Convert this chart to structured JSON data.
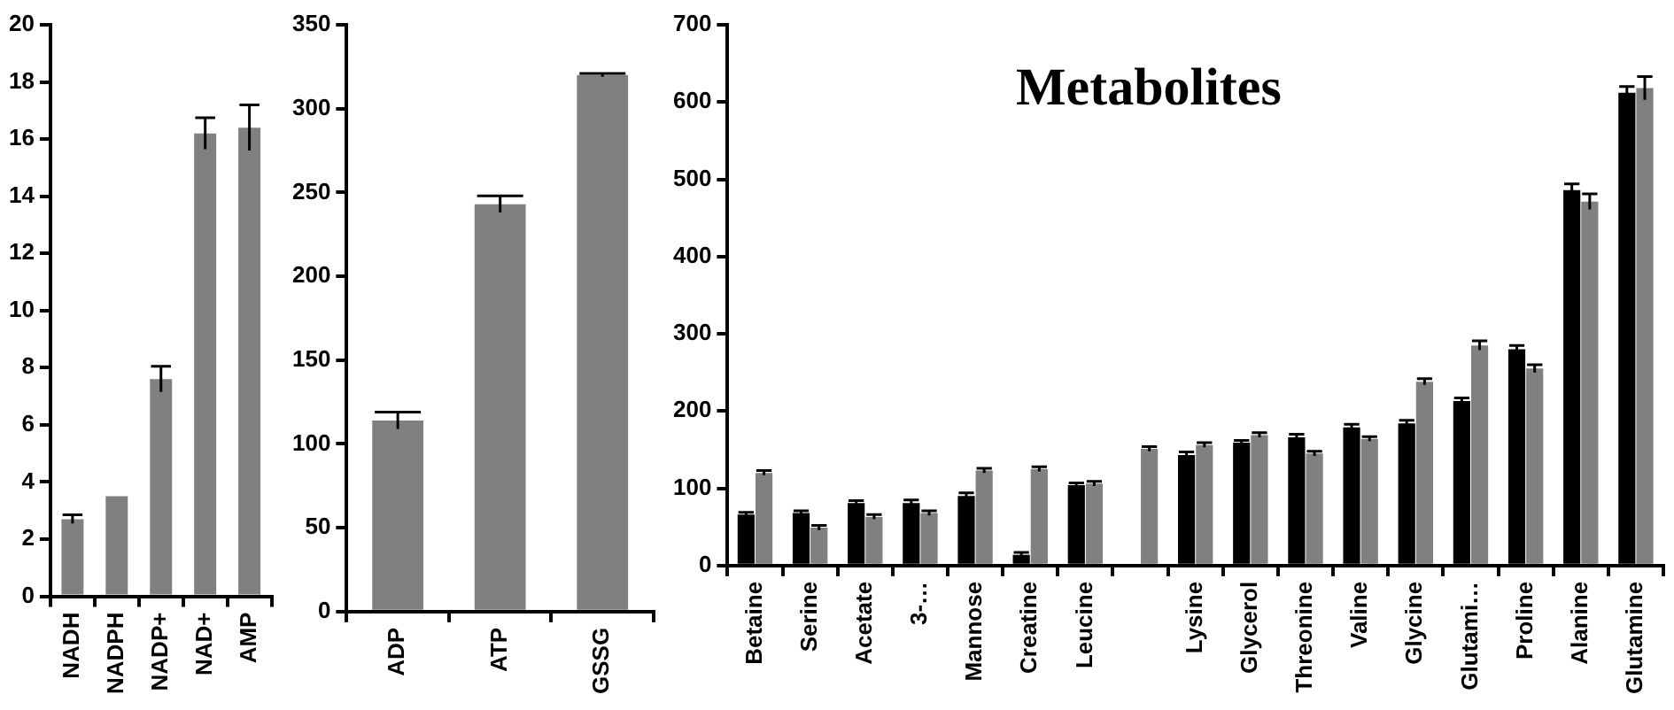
{
  "chart_data": [
    {
      "type": "bar",
      "categories": [
        "NADH",
        "NADPH",
        "NADP+",
        "NAD+",
        "AMP"
      ],
      "values": [
        2.7,
        3.5,
        7.6,
        16.2,
        16.4
      ],
      "errors": [
        0.15,
        null,
        0.45,
        0.55,
        0.8
      ],
      "color": "#808080",
      "ylim": [
        0,
        20
      ],
      "yticks": [
        0,
        2,
        4,
        6,
        8,
        10,
        12,
        14,
        16,
        18,
        20
      ],
      "grid": false,
      "legend": false
    },
    {
      "type": "bar",
      "categories": [
        "ADP",
        "ATP",
        "GSSG"
      ],
      "values": [
        114,
        243,
        320
      ],
      "errors": [
        5,
        5,
        1
      ],
      "color": "#808080",
      "ylim": [
        0,
        350
      ],
      "yticks": [
        0,
        50,
        100,
        150,
        200,
        250,
        300,
        350
      ],
      "grid": false,
      "legend": false
    },
    {
      "type": "bar",
      "title": "Metabolites",
      "categories": [
        "Betaine",
        "Serine",
        "Acetate",
        "3-…",
        "Mannose",
        "Creatine",
        "Leucine",
        null,
        "Lysine",
        "Glycerol",
        "Threonine",
        "Valine",
        "Glycine",
        "Glutami…",
        "Proline",
        "Alanine",
        "Glutamine"
      ],
      "series": [
        {
          "color": "#000000",
          "values": [
            66,
            68,
            81,
            81,
            90,
            14,
            104,
            null,
            143,
            159,
            166,
            179,
            184,
            213,
            280,
            486,
            612
          ],
          "errors": [
            3,
            3,
            3,
            4,
            4,
            3,
            3,
            null,
            4,
            3,
            4,
            4,
            4,
            4,
            5,
            8,
            8
          ]
        },
        {
          "color": "#808080",
          "values": [
            120,
            49,
            63,
            68,
            123,
            125,
            106,
            151,
            156,
            169,
            145,
            164,
            238,
            285,
            255,
            471,
            618
          ],
          "errors": [
            3,
            3,
            3,
            3,
            3,
            3,
            3,
            3,
            3,
            3,
            3,
            3,
            4,
            6,
            5,
            10,
            15
          ]
        }
      ],
      "ylim": [
        0,
        700
      ],
      "yticks": [
        0,
        100,
        200,
        300,
        400,
        500,
        600,
        700
      ],
      "grid": false,
      "legend": false
    }
  ]
}
